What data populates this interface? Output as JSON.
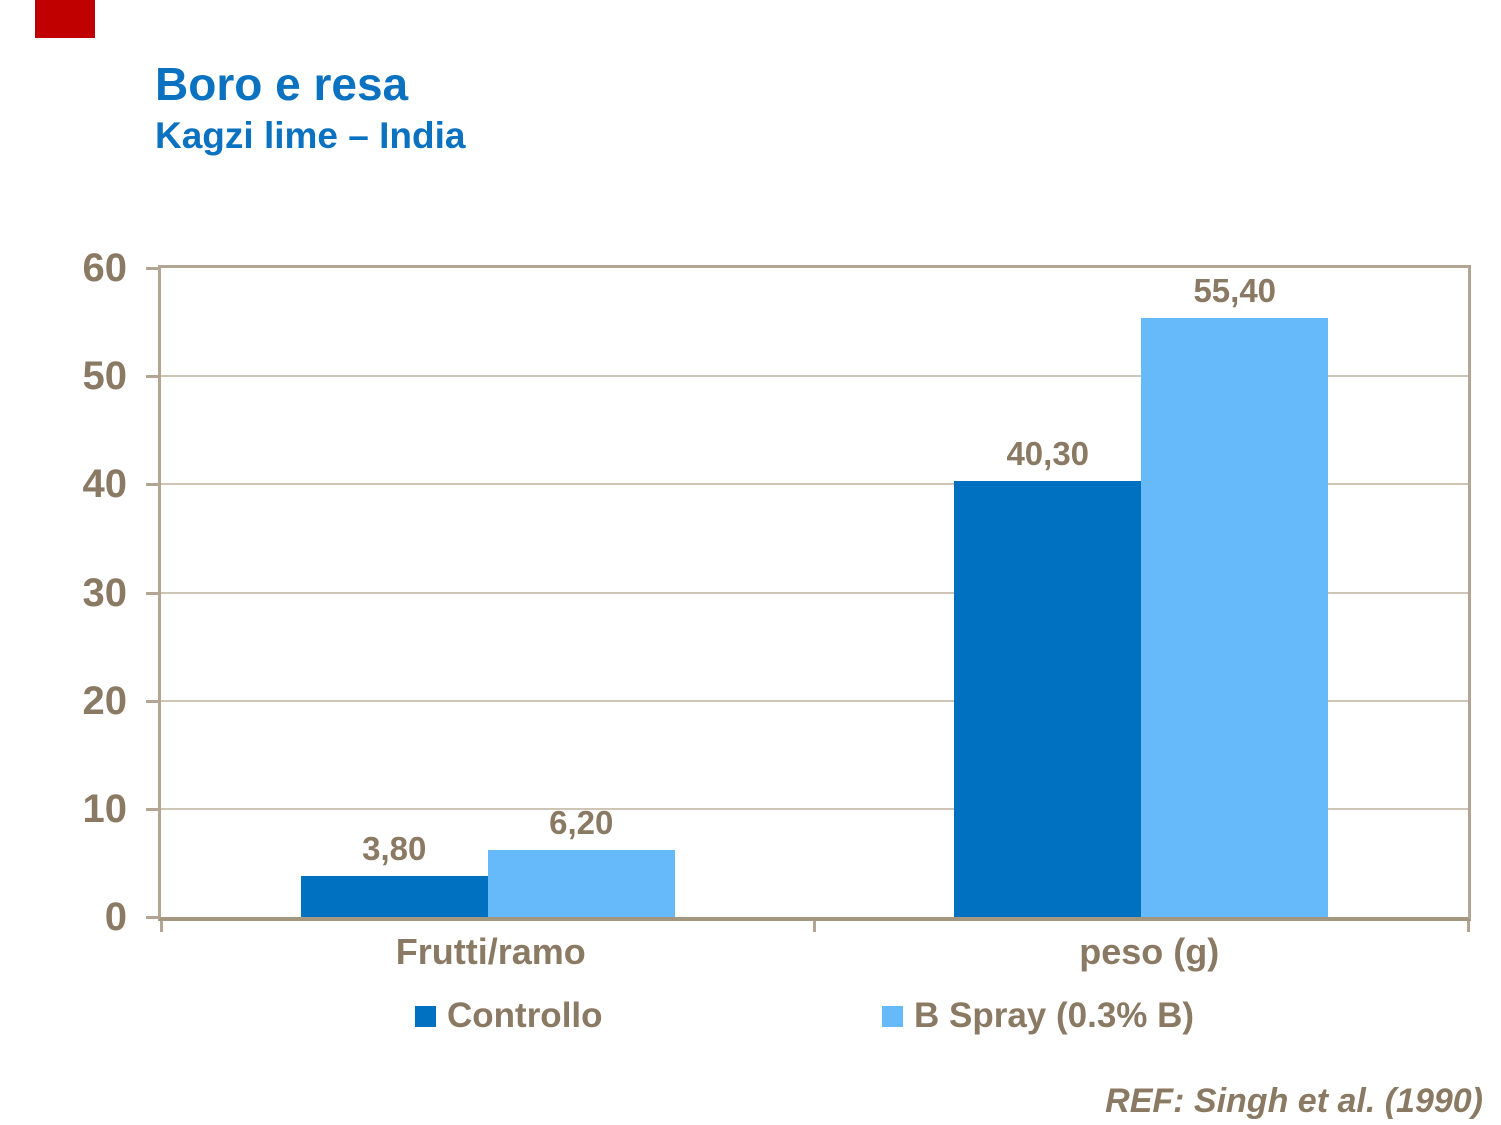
{
  "logo_color": "#C00000",
  "header": {
    "title": "Boro e resa",
    "subtitle": "Kagzi lime – India",
    "title_color": "#0B72C1"
  },
  "chart_data": {
    "type": "bar",
    "title": "Boro e resa",
    "subtitle": "Kagzi lime – India",
    "categories": [
      "Frutti/ramo",
      "peso (g)"
    ],
    "series": [
      {
        "name": "Controllo",
        "color": "#0070C0",
        "values": [
          3.8,
          40.3
        ],
        "value_labels": [
          "3,80",
          "40,30"
        ]
      },
      {
        "name": "B Spray (0.3% B)",
        "color": "#67BAFA",
        "values": [
          6.2,
          55.4
        ],
        "value_labels": [
          "6,20",
          "55,40"
        ]
      }
    ],
    "ylim": [
      0,
      60
    ],
    "yticks": [
      0,
      10,
      20,
      30,
      40,
      50,
      60
    ],
    "ytick_labels": [
      "0",
      "10",
      "20",
      "30",
      "40",
      "50",
      "60"
    ],
    "xlabel": "",
    "ylabel": "",
    "grid": true,
    "legend_position": "bottom",
    "reference": "REF: Singh et al. (1990)"
  },
  "style_colors": {
    "text_brown": "#8A7963",
    "gridline": "#CFC5B5",
    "frame": "#B2A593",
    "baseline": "#A3977F",
    "tick": "#B2A593"
  }
}
